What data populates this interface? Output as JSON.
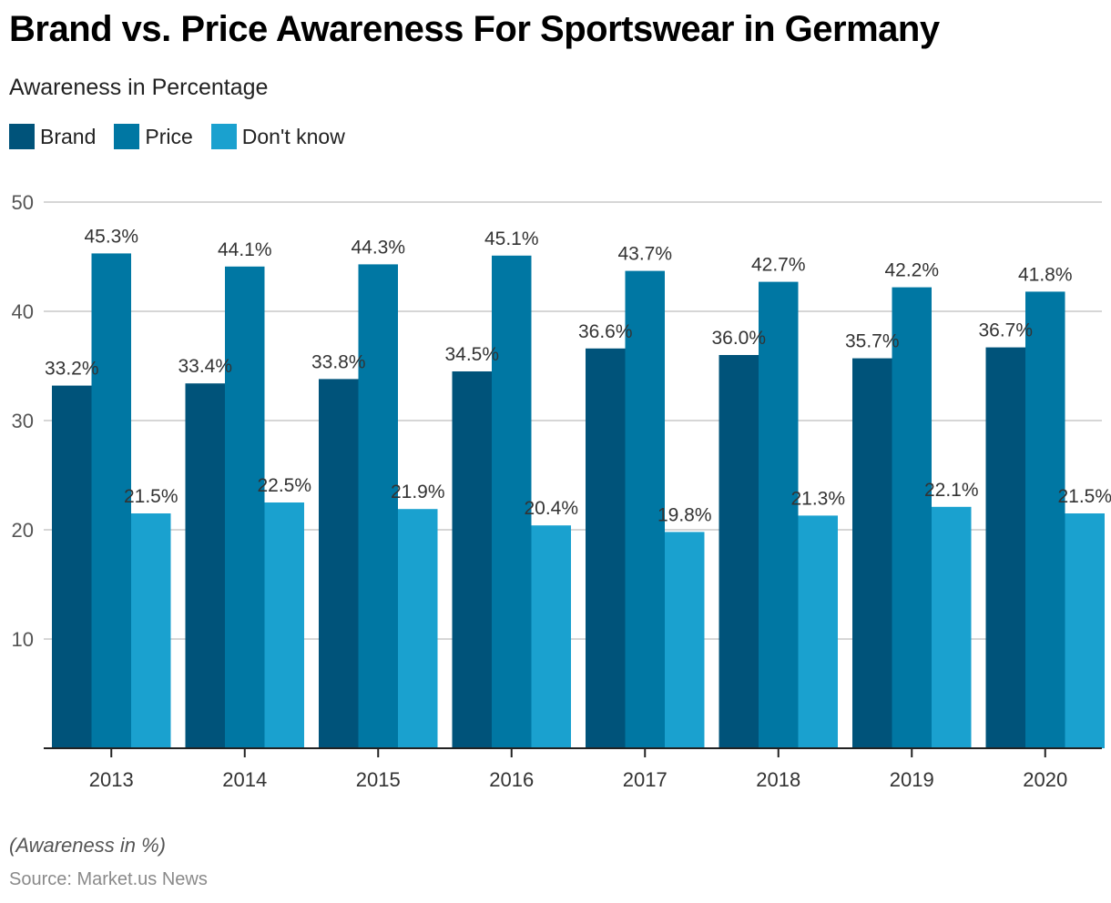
{
  "chart_data": {
    "type": "bar",
    "title": "Brand vs. Price Awareness For Sportswear in Germany",
    "subtitle": "Awareness in Percentage",
    "xlabel": "",
    "ylabel": "",
    "note": "(Awareness in %)",
    "source": "Source: Market.us News",
    "categories": [
      "2013",
      "2014",
      "2015",
      "2016",
      "2017",
      "2018",
      "2019",
      "2020"
    ],
    "series": [
      {
        "name": "Brand",
        "color": "#00537a",
        "values": [
          33.2,
          33.4,
          33.8,
          34.5,
          36.6,
          36.0,
          35.7,
          36.7
        ],
        "labels": [
          "33.2%",
          "33.4%",
          "33.8%",
          "34.5%",
          "36.6%",
          "36.0%",
          "35.7%",
          "36.7%"
        ]
      },
      {
        "name": "Price",
        "color": "#0077a3",
        "values": [
          45.3,
          44.1,
          44.3,
          45.1,
          43.7,
          42.7,
          42.2,
          41.8
        ],
        "labels": [
          "45.3%",
          "44.1%",
          "44.3%",
          "45.1%",
          "43.7%",
          "42.7%",
          "42.2%",
          "41.8%"
        ]
      },
      {
        "name": "Don't know",
        "color": "#1aa1cf",
        "values": [
          21.5,
          22.5,
          21.9,
          20.4,
          19.8,
          21.3,
          22.1,
          21.5
        ],
        "labels": [
          "21.5%",
          "22.5%",
          "21.9%",
          "20.4%",
          "19.8%",
          "21.3%",
          "22.1%",
          "21.5%"
        ]
      }
    ],
    "ylim": [
      0,
      50
    ],
    "yticks": [
      "10",
      "20",
      "30",
      "40",
      "50"
    ],
    "ytick_values": [
      10,
      20,
      30,
      40,
      50
    ],
    "grid": true,
    "legend_position": "top-left"
  }
}
